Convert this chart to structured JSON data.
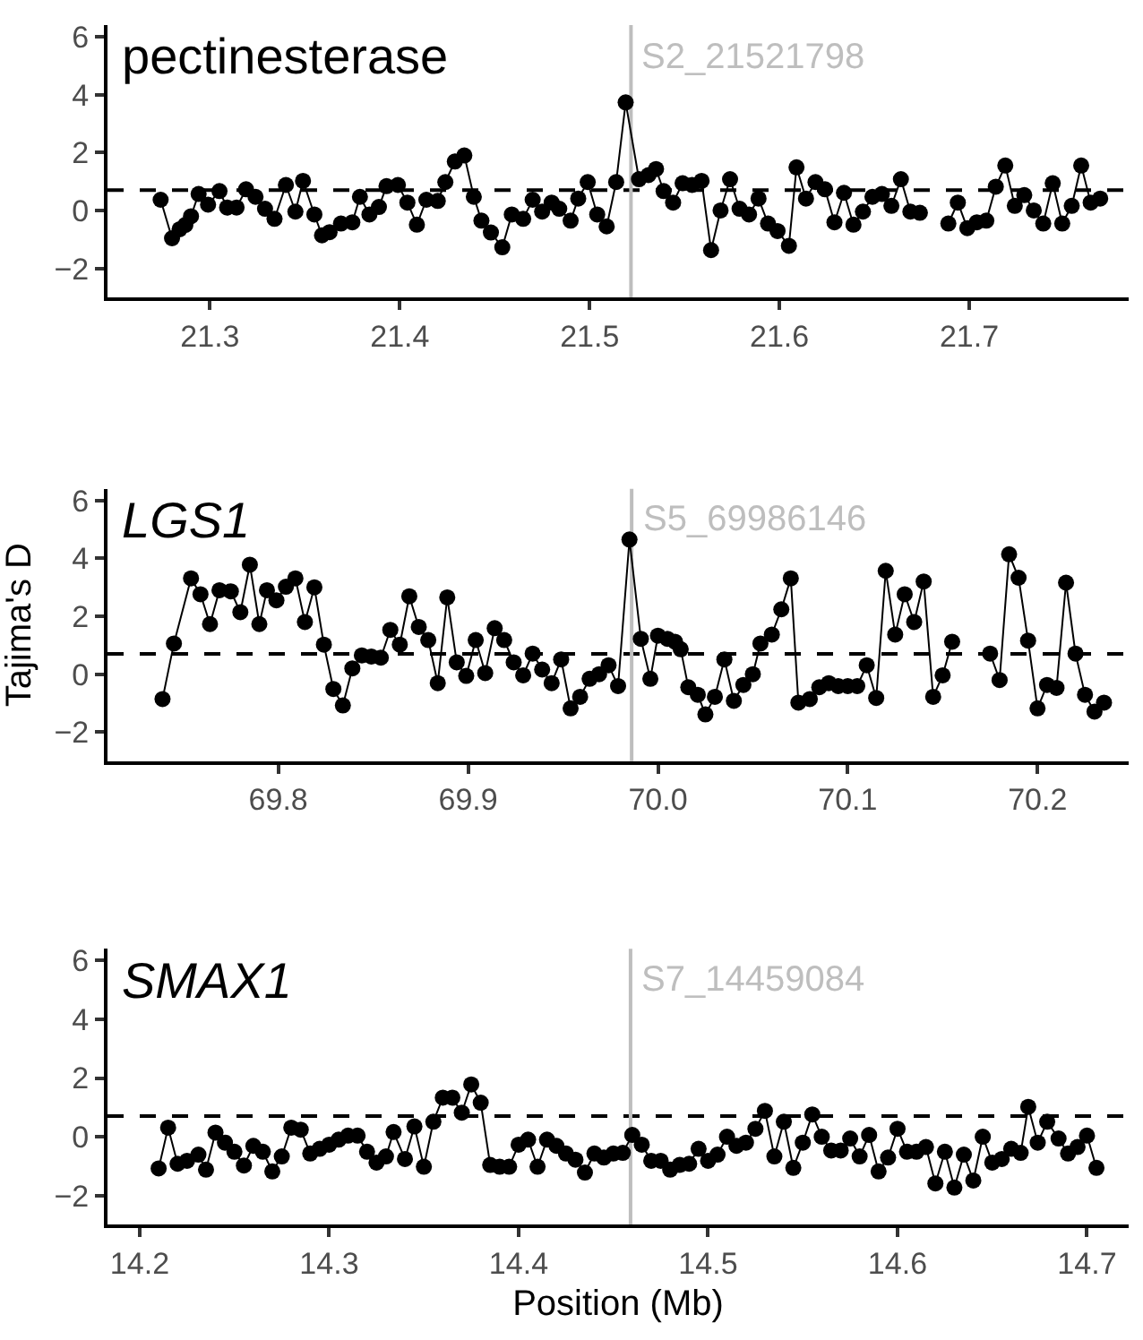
{
  "chart_data": [
    {
      "type": "line",
      "title": "pectinesterase",
      "marker": "circle",
      "grid": false,
      "xlim": [
        21.246,
        21.784
      ],
      "ylim": [
        -3,
        6.4
      ],
      "xticks": [
        21.3,
        21.4,
        21.5,
        21.6,
        21.7
      ],
      "yticks": [
        -2,
        0,
        2,
        4,
        6
      ],
      "ref_lines": [
        {
          "axis": "y",
          "value": 0.7,
          "color": "#000000",
          "line_style": "dashed"
        },
        {
          "axis": "x",
          "value": 21.521798,
          "label": "S2_21521798",
          "color": "#bebebe"
        }
      ],
      "series": [
        {
          "color": "#000000",
          "x": [
            21.274,
            21.28,
            21.284,
            21.287,
            21.29,
            21.294,
            21.299,
            21.305,
            21.309,
            21.314,
            21.319,
            21.324,
            21.329,
            21.334,
            21.34,
            21.345,
            21.349,
            21.355,
            21.359,
            21.363,
            21.369,
            21.375,
            21.379,
            21.384,
            21.389,
            21.393,
            21.399,
            21.404,
            21.409,
            21.414,
            21.42,
            21.424,
            21.429,
            21.434,
            21.439,
            21.443,
            21.448,
            21.454,
            21.459,
            21.465,
            21.47,
            21.475,
            21.48,
            21.484,
            21.49,
            21.494,
            21.499,
            21.504,
            21.509,
            21.514,
            21.519,
            21.526,
            21.531,
            21.535,
            21.539,
            21.544,
            21.549,
            21.554,
            21.559,
            21.564,
            21.569,
            21.574,
            21.579,
            21.584,
            21.589,
            21.594,
            21.599,
            21.605,
            21.609,
            21.614,
            21.619,
            21.624,
            21.629,
            21.634,
            21.639,
            21.644,
            21.649,
            21.654,
            21.659,
            21.664,
            21.669,
            21.674,
            21.681,
            21.689,
            21.694,
            21.699,
            21.704,
            21.709,
            21.714,
            21.719,
            21.724,
            21.729,
            21.734,
            21.739,
            21.744,
            21.749,
            21.754,
            21.759,
            21.764,
            21.769
          ],
          "values": [
            0.37,
            -0.96,
            -0.65,
            -0.5,
            -0.2,
            0.57,
            0.2,
            0.67,
            0.1,
            0.1,
            0.73,
            0.47,
            0.06,
            -0.29,
            0.88,
            -0.04,
            1.02,
            -0.14,
            -0.86,
            -0.75,
            -0.45,
            -0.41,
            0.47,
            -0.14,
            0.12,
            0.84,
            0.88,
            0.27,
            -0.49,
            0.37,
            0.33,
            0.98,
            1.69,
            1.9,
            0.47,
            -0.35,
            -0.76,
            -1.27,
            -0.14,
            -0.29,
            0.37,
            -0.04,
            0.27,
            0.06,
            -0.35,
            0.41,
            0.98,
            -0.14,
            -0.55,
            0.98,
            3.73,
            1.08,
            1.22,
            1.43,
            0.67,
            0.27,
            0.94,
            0.88,
            1.02,
            -1.37,
            0,
            1.08,
            0.06,
            -0.14,
            0.41,
            -0.45,
            -0.71,
            -1.22,
            1.49,
            0.41,
            0.98,
            0.73,
            -0.41,
            0.61,
            -0.49,
            -0.04,
            0.47,
            0.57,
            0.16,
            1.08,
            -0.04,
            -0.08,
            null,
            -0.45,
            0.27,
            -0.61,
            -0.41,
            -0.35,
            0.82,
            1.55,
            0.16,
            0.53,
            0,
            -0.45,
            0.94,
            -0.45,
            0.16,
            1.55,
            0.27,
            0.41
          ]
        }
      ]
    },
    {
      "type": "line",
      "title": "LGS1",
      "ylabel": "Tajima's D",
      "marker": "circle",
      "grid": false,
      "xlim": [
        69.71,
        70.248
      ],
      "ylim": [
        -3,
        6.4
      ],
      "xticks": [
        69.8,
        69.9,
        {
          "value": 70,
          "label": "70.0"
        },
        70.1,
        70.2
      ],
      "yticks": [
        -2,
        0,
        2,
        4,
        6
      ],
      "ref_lines": [
        {
          "axis": "y",
          "value": 0.7,
          "color": "#000000",
          "line_style": "dashed"
        },
        {
          "axis": "x",
          "value": 69.986146,
          "label": "S5_69986146",
          "color": "#bebebe"
        }
      ],
      "series": [
        {
          "color": "#000000",
          "x": [
            69.739,
            69.745,
            69.754,
            69.759,
            69.764,
            69.769,
            69.775,
            69.78,
            69.785,
            69.79,
            69.794,
            69.799,
            69.804,
            69.809,
            69.814,
            69.819,
            69.824,
            69.829,
            69.834,
            69.839,
            69.844,
            69.849,
            69.854,
            69.859,
            69.864,
            69.869,
            69.874,
            69.879,
            69.884,
            69.889,
            69.894,
            69.899,
            69.904,
            69.909,
            69.914,
            69.919,
            69.924,
            69.929,
            69.934,
            69.939,
            69.944,
            69.949,
            69.954,
            69.959,
            69.964,
            69.969,
            69.974,
            69.979,
            69.985,
            69.991,
            69.996,
            70.0,
            70.005,
            70.009,
            70.012,
            70.016,
            70.021,
            70.025,
            70.03,
            70.035,
            70.04,
            70.045,
            70.05,
            70.054,
            70.06,
            70.065,
            70.07,
            70.074,
            70.08,
            70.085,
            70.09,
            70.095,
            70.1,
            70.105,
            70.11,
            70.115,
            70.12,
            70.125,
            70.13,
            70.135,
            70.14,
            70.145,
            70.15,
            70.155,
            70.165,
            70.175,
            70.18,
            70.185,
            70.19,
            70.195,
            70.2,
            70.205,
            70.21,
            70.215,
            70.22,
            70.225,
            70.23,
            70.235
          ],
          "values": [
            -0.86,
            1.06,
            3.31,
            2.76,
            1.73,
            2.9,
            2.86,
            2.14,
            3.78,
            1.73,
            2.9,
            2.55,
            3.02,
            3.31,
            1.8,
            3.0,
            1.02,
            -0.51,
            -1.08,
            0.2,
            0.65,
            0.61,
            0.57,
            1.53,
            1.02,
            2.69,
            1.63,
            1.18,
            -0.31,
            2.65,
            0.41,
            -0.06,
            1.18,
            0.04,
            1.59,
            1.18,
            0.41,
            -0.04,
            0.71,
            0.16,
            -0.31,
            0.51,
            -1.18,
            -0.78,
            -0.16,
            0,
            0.31,
            -0.41,
            4.65,
            1.22,
            -0.16,
            1.33,
            1.22,
            1.12,
            0.86,
            -0.45,
            -0.71,
            -1.39,
            -0.78,
            0.51,
            -0.92,
            -0.37,
            0,
            1.06,
            1.37,
            2.24,
            3.31,
            -0.98,
            -0.86,
            -0.45,
            -0.31,
            -0.41,
            -0.41,
            -0.41,
            0.31,
            -0.82,
            3.57,
            1.37,
            2.76,
            1.8,
            3.2,
            -0.78,
            -0.04,
            1.12,
            null,
            0.71,
            -0.2,
            4.14,
            3.33,
            1.16,
            -1.18,
            -0.37,
            -0.47,
            3.16,
            0.71,
            -0.71,
            -1.29,
            -0.98
          ]
        }
      ]
    },
    {
      "type": "line",
      "title": "SMAX1",
      "xlabel": "Position (Mb)",
      "marker": "circle",
      "grid": false,
      "xlim": [
        14.183,
        14.722
      ],
      "ylim": [
        -3,
        6.4
      ],
      "xticks": [
        14.2,
        14.3,
        14.4,
        14.5,
        14.6,
        14.7
      ],
      "yticks": [
        -2,
        0,
        2,
        4,
        6
      ],
      "ref_lines": [
        {
          "axis": "y",
          "value": 0.7,
          "color": "#000000",
          "line_style": "dashed"
        },
        {
          "axis": "x",
          "value": 14.459084,
          "label": "S7_14459084",
          "color": "#bebebe"
        }
      ],
      "series": [
        {
          "color": "#000000",
          "x": [
            14.21,
            14.215,
            14.22,
            14.225,
            14.231,
            14.235,
            14.24,
            14.245,
            14.25,
            14.255,
            14.26,
            14.265,
            14.27,
            14.275,
            14.28,
            14.285,
            14.29,
            14.295,
            14.3,
            14.305,
            14.31,
            14.315,
            14.32,
            14.325,
            14.33,
            14.334,
            14.34,
            14.345,
            14.35,
            14.355,
            14.36,
            14.365,
            14.37,
            14.375,
            14.38,
            14.385,
            14.39,
            14.395,
            14.4,
            14.405,
            14.41,
            14.415,
            14.42,
            14.425,
            14.43,
            14.435,
            14.44,
            14.445,
            14.45,
            14.455,
            14.46,
            14.465,
            14.47,
            14.475,
            14.48,
            14.485,
            14.49,
            14.495,
            14.5,
            14.505,
            14.51,
            14.515,
            14.52,
            14.525,
            14.53,
            14.535,
            14.54,
            14.545,
            14.55,
            14.555,
            14.56,
            14.565,
            14.57,
            14.575,
            14.58,
            14.585,
            14.59,
            14.595,
            14.6,
            14.605,
            14.61,
            14.615,
            14.62,
            14.625,
            14.63,
            14.635,
            14.64,
            14.645,
            14.65,
            14.655,
            14.66,
            14.665,
            14.669,
            14.674,
            14.679,
            14.685,
            14.69,
            14.695,
            14.7,
            14.705
          ],
          "values": [
            -1.08,
            0.31,
            -0.92,
            -0.82,
            -0.61,
            -1.12,
            0.14,
            -0.2,
            -0.51,
            -0.98,
            -0.31,
            -0.51,
            -1.18,
            -0.67,
            0.31,
            0.24,
            -0.57,
            -0.41,
            -0.27,
            -0.1,
            0.04,
            0.04,
            -0.51,
            -0.88,
            -0.67,
            0.16,
            -0.76,
            0.35,
            -1.02,
            0.51,
            1.33,
            1.33,
            0.82,
            1.78,
            1.16,
            -0.96,
            -1.02,
            -1.02,
            -0.27,
            -0.1,
            -1.02,
            -0.1,
            -0.31,
            -0.57,
            -0.78,
            -1.22,
            -0.57,
            -0.71,
            -0.57,
            -0.55,
            0.06,
            -0.27,
            -0.82,
            -0.82,
            -1.12,
            -0.96,
            -0.92,
            -0.41,
            -0.82,
            -0.61,
            0,
            -0.31,
            -0.2,
            0.27,
            0.88,
            -0.67,
            0.51,
            -1.06,
            -0.2,
            0.76,
            0,
            -0.47,
            -0.47,
            -0.06,
            -0.67,
            0.06,
            -1.18,
            -0.71,
            0.27,
            -0.51,
            -0.51,
            -0.35,
            -1.59,
            -0.51,
            -1.73,
            -0.61,
            -1.49,
            0,
            -0.88,
            -0.76,
            -0.41,
            -0.55,
            1.02,
            -0.2,
            0.51,
            -0.06,
            -0.57,
            -0.35,
            0.04,
            -1.06
          ]
        }
      ]
    }
  ]
}
